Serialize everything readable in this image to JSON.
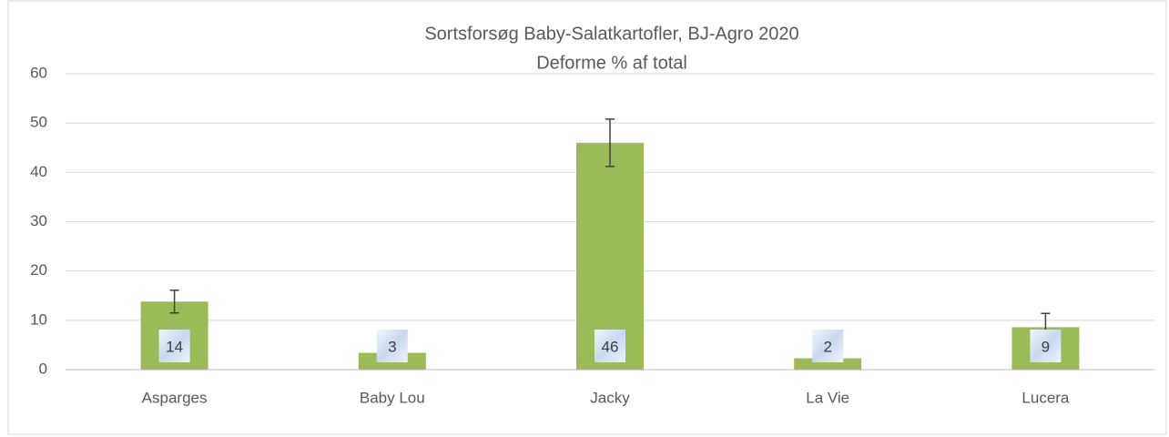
{
  "chart_data": {
    "type": "bar",
    "title": "Sortsforsøg Baby-Salatkartofler, BJ-Agro 2020",
    "subtitle": "Deforme % af total",
    "categories": [
      "Asparges",
      "Baby Lou",
      "Jacky",
      "La Vie",
      "Lucera"
    ],
    "values": [
      13.8,
      3.4,
      46,
      2.3,
      8.6
    ],
    "value_labels": [
      "14",
      "3",
      "46",
      "2",
      "9"
    ],
    "errors": [
      2.3,
      null,
      4.8,
      null,
      2.8
    ],
    "color": "#9bbb59",
    "ylim": [
      0,
      60
    ],
    "yticks": [
      0,
      10,
      20,
      30,
      40,
      50,
      60
    ],
    "grid": true
  }
}
